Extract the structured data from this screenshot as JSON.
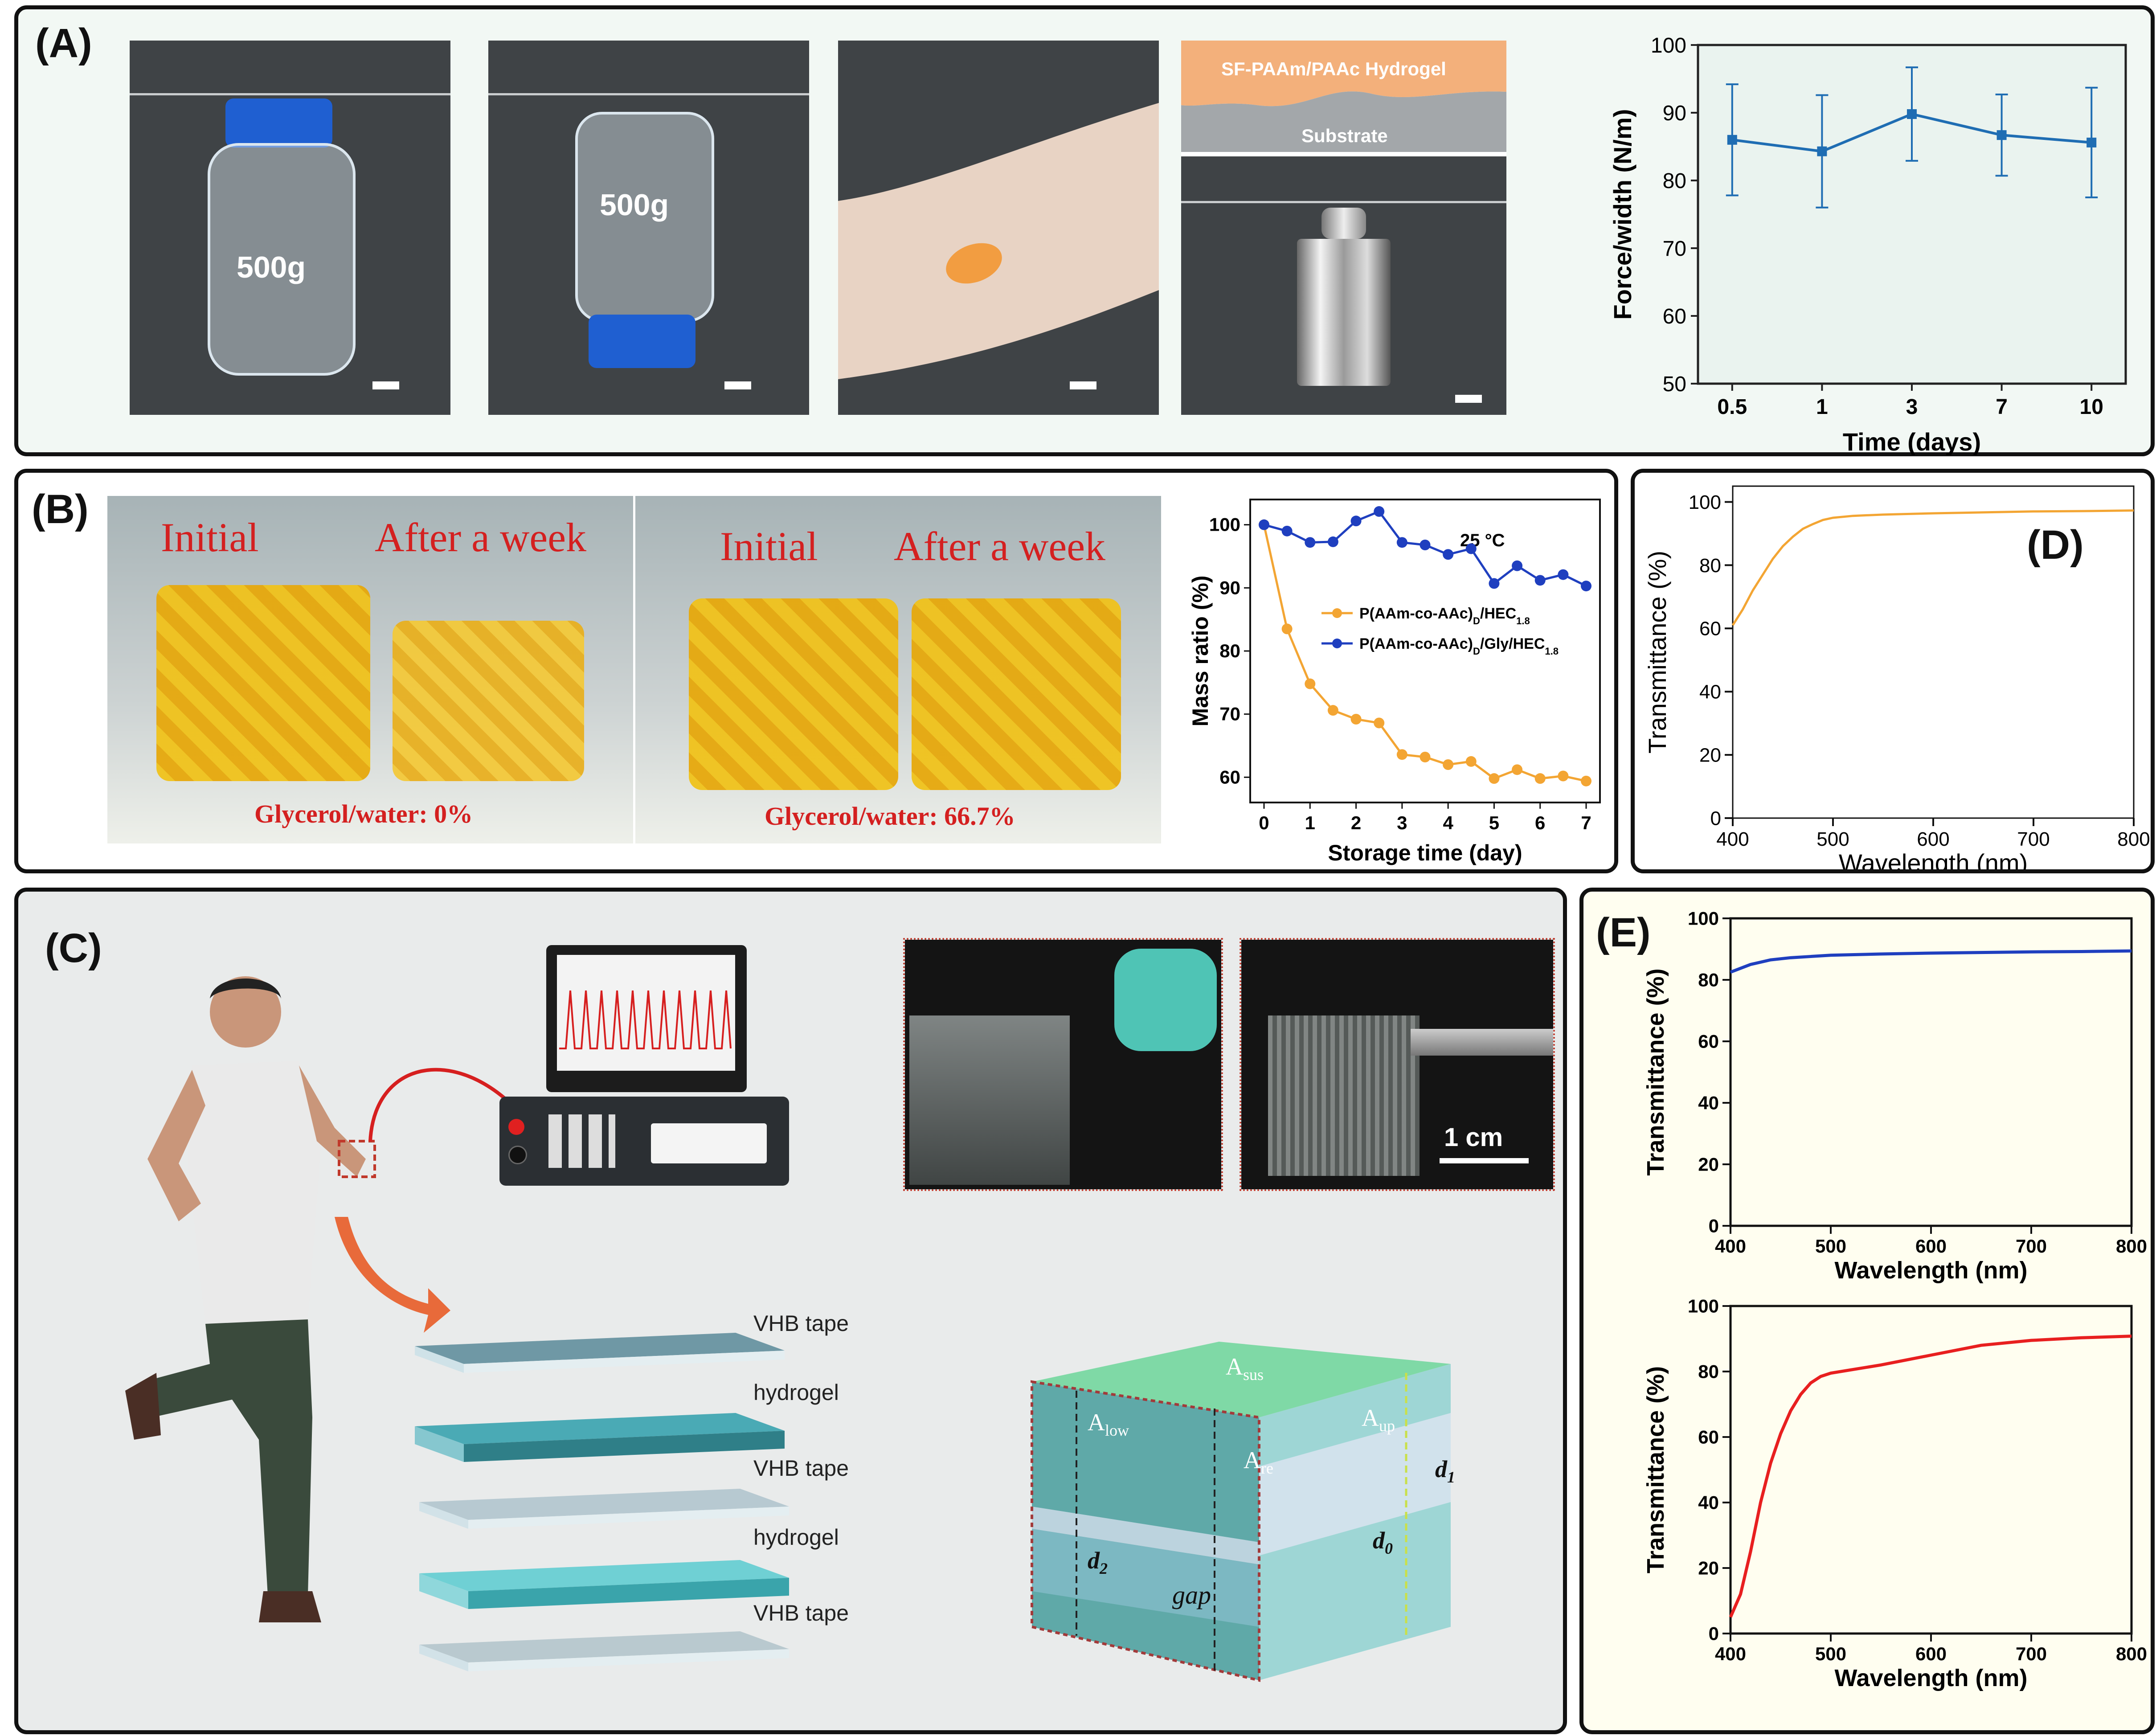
{
  "panels": {
    "A": {
      "label": "(A)",
      "photos": {
        "bottle_label": "500g",
        "bottle2_label": "500g",
        "layer_top": "SF-PAAm/PAAc Hydrogel",
        "layer_bottom": "Substrate"
      }
    },
    "B": {
      "label": "(B)",
      "photo1": {
        "left": "Initial",
        "right": "After a week",
        "caption": "Glycerol/water: 0%"
      },
      "photo2": {
        "left": "Initial",
        "right": "After a week",
        "caption": "Glycerol/water: 66.7%"
      }
    },
    "C": {
      "label": "(C)",
      "scale": "1 cm",
      "layers": [
        "VHB tape",
        "hydrogel",
        "VHB tape",
        "hydrogel",
        "VHB tape"
      ],
      "cube_labels": {
        "sus": "A",
        "sus_sub": "sus",
        "low": "A",
        "low_sub": "low",
        "up": "A",
        "up_sub": "up",
        "re": "A",
        "re_sub": "re",
        "d1": "d",
        "d1_sub": "1",
        "d0": "d",
        "d0_sub": "0",
        "d2": "d",
        "d2_sub": "2",
        "gap": "gap"
      }
    },
    "D": {
      "label": "(D)"
    },
    "E": {
      "label": "(E)"
    }
  },
  "colors": {
    "panel_bg": "#f2f8f4",
    "line_blue": "#1f6db3",
    "orange": "#f3a533",
    "navy": "#1f3fbf",
    "red": "#e81f1f",
    "caption_red": "#d42020"
  },
  "chart_data": [
    {
      "id": "A-force",
      "type": "line",
      "xlabel": "Time (days)",
      "ylabel": "Force/width (N/m)",
      "categories": [
        "0.5",
        "1",
        "3",
        "7",
        "10"
      ],
      "values": [
        86,
        84.3,
        89.8,
        86.7,
        85.6
      ],
      "error": [
        8.2,
        8.3,
        6.9,
        6.0,
        8.1
      ],
      "ylim": [
        50,
        100
      ],
      "yticks": [
        "50",
        "60",
        "70",
        "80",
        "90",
        "100"
      ]
    },
    {
      "id": "B-mass",
      "type": "line",
      "annotation": "25 °C",
      "xlabel": "Storage time (day)",
      "ylabel": "Mass ratio (%)",
      "xlim": [
        -0.3,
        7.3
      ],
      "ylim": [
        56,
        104
      ],
      "xticks": [
        "0",
        "1",
        "2",
        "3",
        "4",
        "5",
        "6",
        "7"
      ],
      "yticks": [
        "60",
        "70",
        "80",
        "90",
        "100"
      ],
      "series": [
        {
          "name": "P(AAm-co-AAc)",
          "name_sub": "D",
          "name_rest": "/HEC",
          "name_sub2": "1.8",
          "color": "#f3a533",
          "x": [
            0,
            0.5,
            1,
            1.5,
            2,
            2.5,
            3,
            3.5,
            4,
            4.5,
            5,
            5.5,
            6,
            6.5,
            7
          ],
          "y": [
            100,
            83.5,
            74.8,
            70.6,
            69.2,
            68.6,
            63.6,
            63.2,
            62,
            62.5,
            59.8,
            61.2,
            59.8,
            60.2,
            59.4
          ]
        },
        {
          "name": "P(AAm-co-AAc)",
          "name_sub": "D",
          "name_rest": "/Gly/HEC",
          "name_sub2": "1.8",
          "color": "#1f3fbf",
          "x": [
            0,
            0.5,
            1,
            1.5,
            2,
            2.5,
            3,
            3.5,
            4,
            4.5,
            5,
            5.5,
            6,
            6.5,
            7
          ],
          "y": [
            100,
            99,
            97.2,
            97.3,
            100.6,
            102.1,
            97.2,
            96.8,
            95.3,
            96.2,
            90.7,
            93.5,
            91.2,
            92.1,
            90.3
          ]
        }
      ]
    },
    {
      "id": "D-trans",
      "type": "line",
      "xlabel": "Wavelength (nm)",
      "ylabel": "Transmittance (%)",
      "xlim": [
        400,
        800
      ],
      "ylim": [
        0,
        105
      ],
      "xticks": [
        "400",
        "500",
        "600",
        "700",
        "800"
      ],
      "yticks": [
        "0",
        "20",
        "40",
        "60",
        "80",
        "100"
      ],
      "x": [
        400,
        410,
        420,
        430,
        440,
        450,
        460,
        470,
        480,
        490,
        500,
        520,
        550,
        600,
        650,
        700,
        750,
        800
      ],
      "y": [
        61,
        66,
        72,
        77,
        82,
        86,
        89,
        91.5,
        93,
        94.3,
        95,
        95.6,
        96,
        96.4,
        96.7,
        97,
        97.1,
        97.3
      ]
    },
    {
      "id": "E-top",
      "type": "line",
      "xlabel": "Wavelength (nm)",
      "ylabel": "Transmittance (%)",
      "xlim": [
        400,
        800
      ],
      "ylim": [
        0,
        100
      ],
      "xticks": [
        "400",
        "500",
        "600",
        "700",
        "800"
      ],
      "yticks": [
        "0",
        "20",
        "40",
        "60",
        "80",
        "100"
      ],
      "x": [
        400,
        420,
        440,
        460,
        480,
        500,
        550,
        600,
        650,
        700,
        750,
        800
      ],
      "y": [
        82.5,
        85,
        86.5,
        87.2,
        87.6,
        88,
        88.4,
        88.7,
        88.9,
        89.1,
        89.2,
        89.4
      ]
    },
    {
      "id": "E-bottom",
      "type": "line",
      "xlabel": "Wavelength (nm)",
      "ylabel": "Transmittance (%)",
      "xlim": [
        400,
        800
      ],
      "ylim": [
        0,
        100
      ],
      "xticks": [
        "400",
        "500",
        "600",
        "700",
        "800"
      ],
      "yticks": [
        "0",
        "20",
        "40",
        "60",
        "80",
        "100"
      ],
      "x": [
        400,
        410,
        420,
        430,
        440,
        450,
        460,
        470,
        480,
        490,
        500,
        520,
        550,
        600,
        650,
        700,
        750,
        800
      ],
      "y": [
        5,
        12,
        25,
        40,
        52,
        61,
        68,
        73,
        76.5,
        78.5,
        79.5,
        80.5,
        82,
        85,
        88,
        89.5,
        90.3,
        90.8
      ]
    }
  ]
}
